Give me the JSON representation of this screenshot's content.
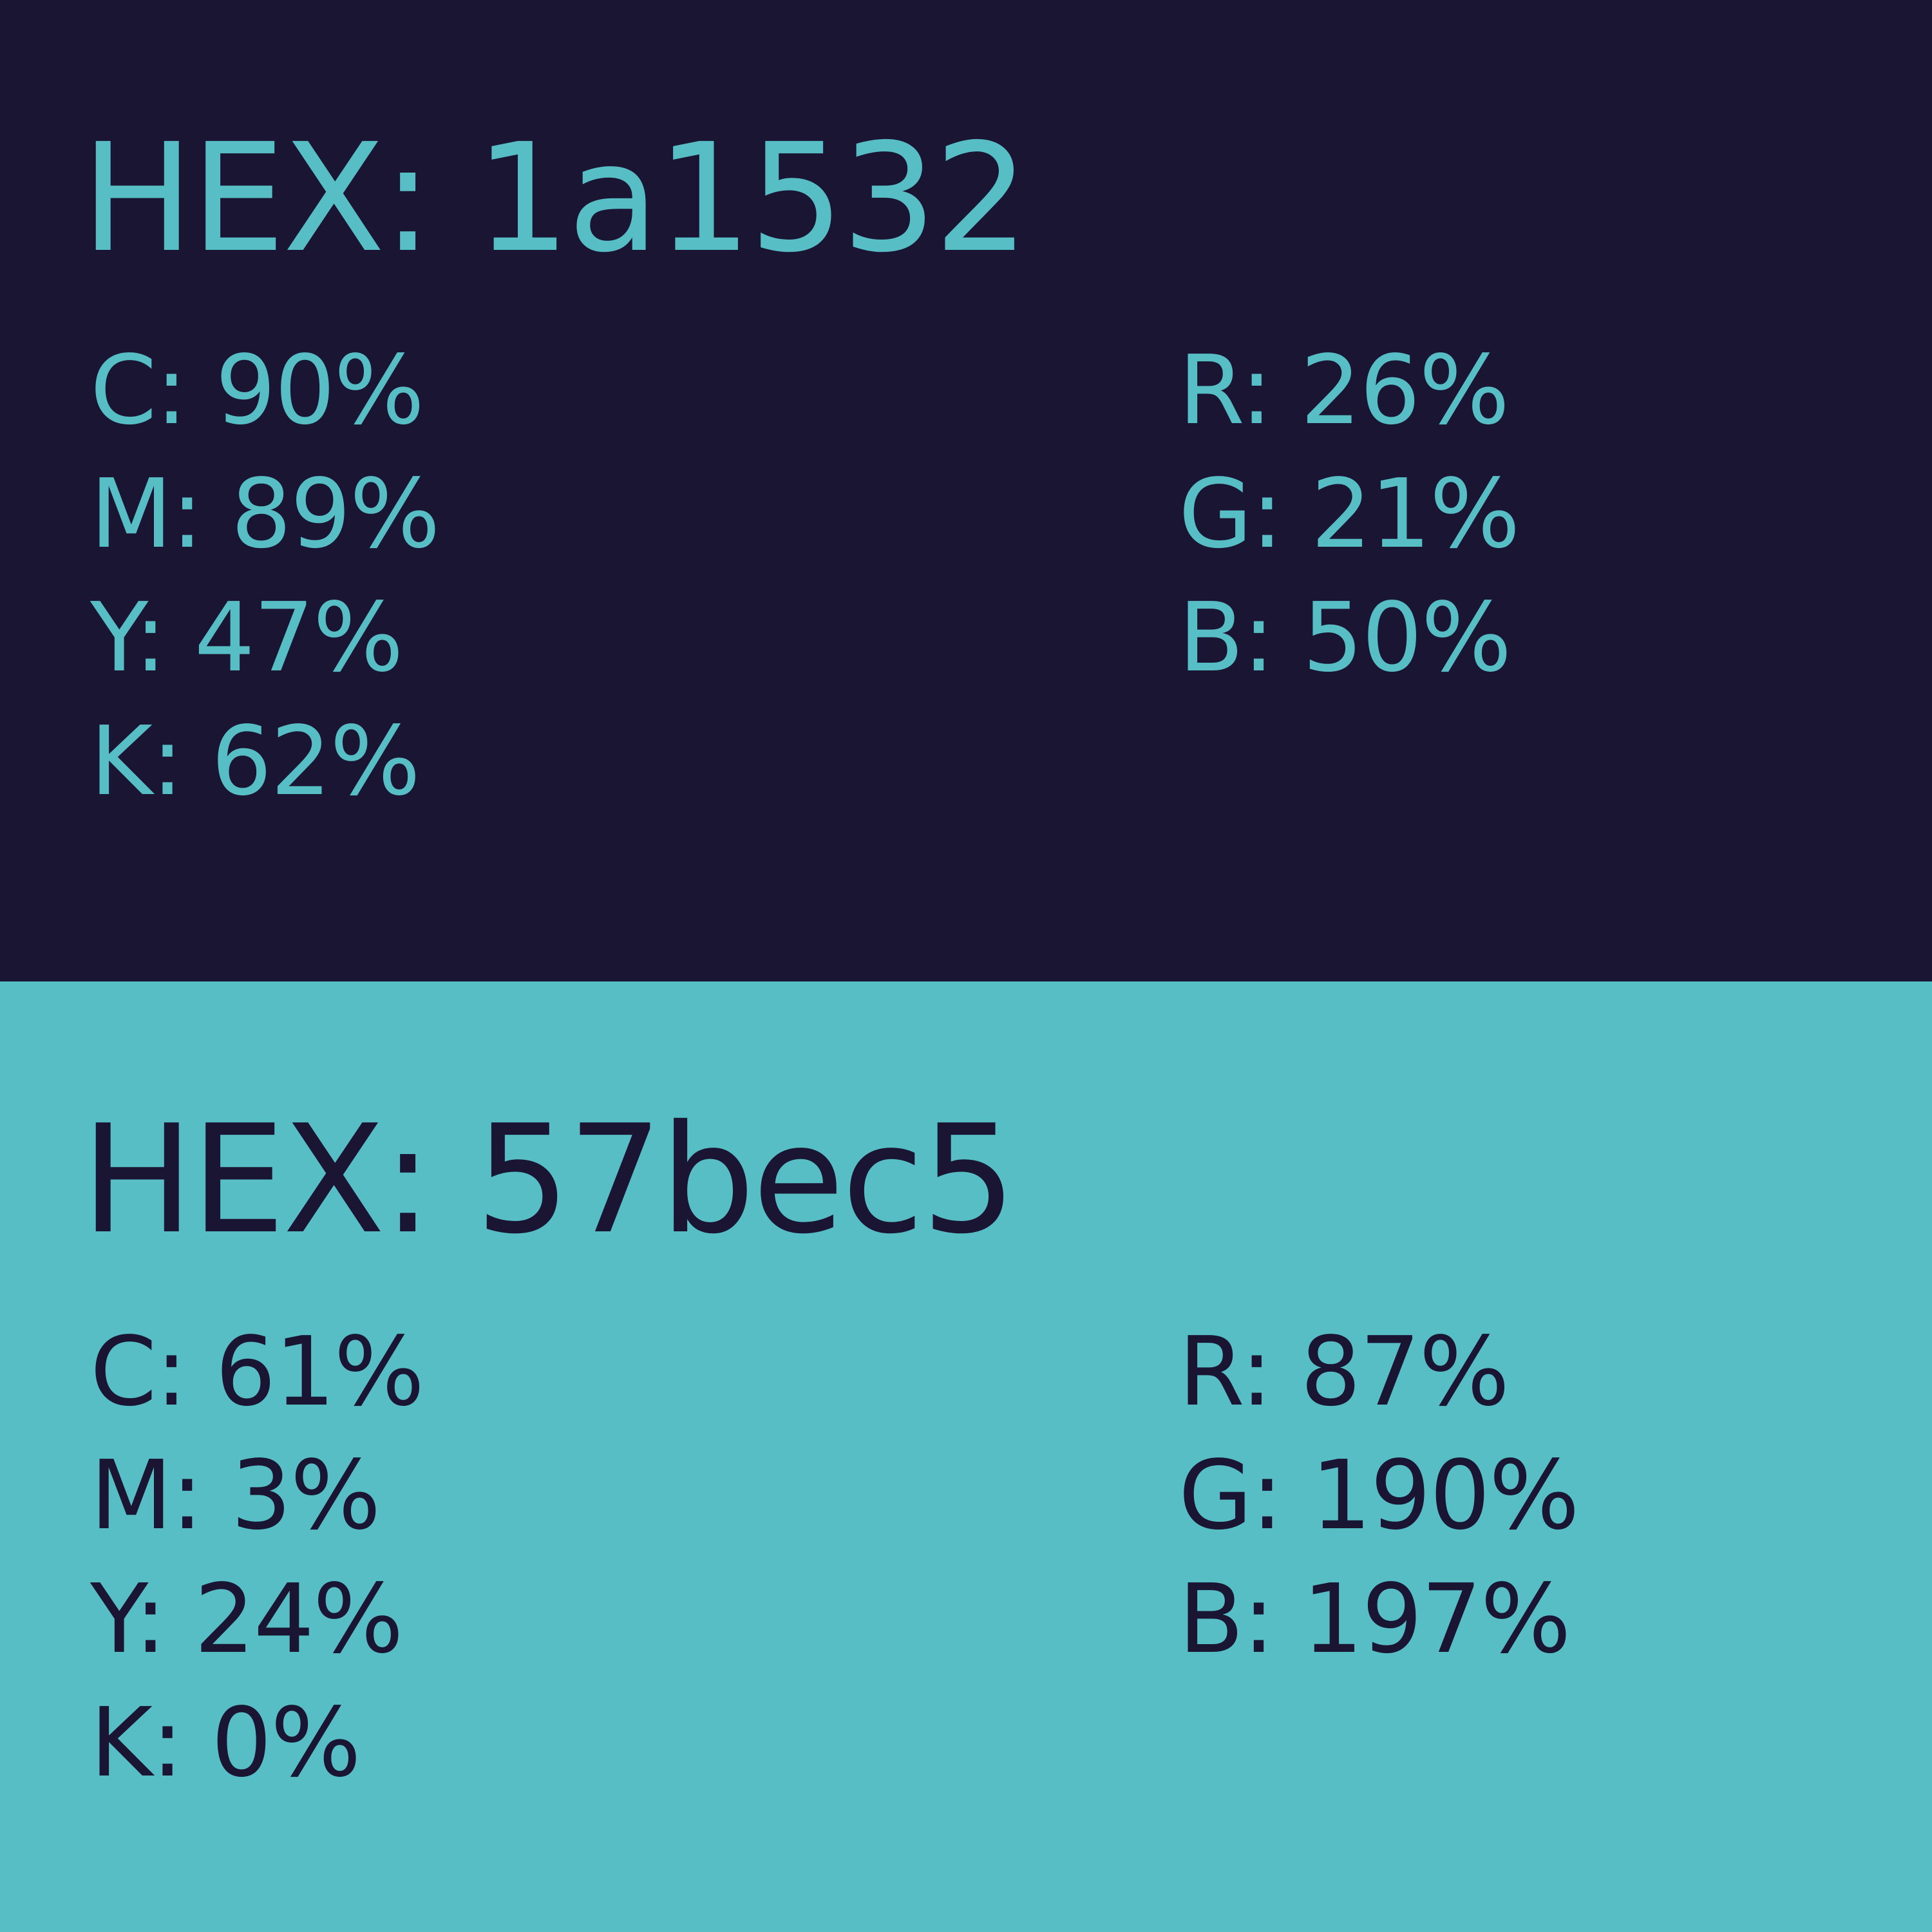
{
  "swatches": [
    {
      "background": "#1a1532",
      "text_color": "#57bec5",
      "hex_label": "HEX: 1a1532",
      "cmyk": [
        "C: 90%",
        "M: 89%",
        "Y: 47%",
        "K: 62%"
      ],
      "rgb": [
        "R: 26%",
        "G: 21%",
        "B: 50%"
      ]
    },
    {
      "background": "#57bec5",
      "text_color": "#1a1532",
      "hex_label": "HEX: 57bec5",
      "cmyk": [
        "C: 61%",
        "M: 3%",
        "Y: 24%",
        "K: 0%"
      ],
      "rgb": [
        "R: 87%",
        "G: 190%",
        "B: 197%"
      ]
    }
  ]
}
